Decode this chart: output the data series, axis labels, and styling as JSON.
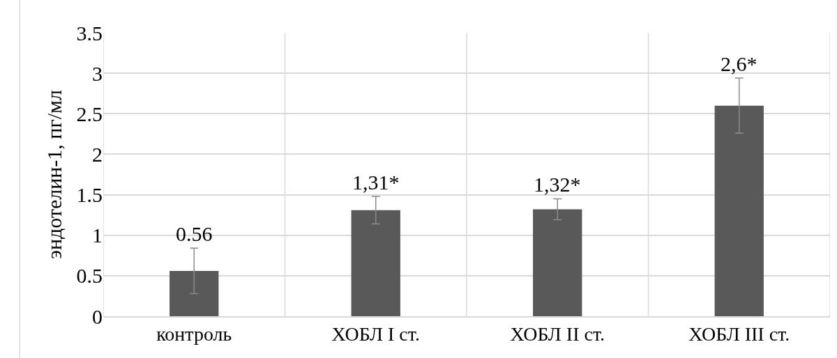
{
  "chart_data": {
    "type": "bar",
    "ylabel": "эндотелин-1, пг/мл",
    "categories": [
      "контроль",
      "ХОБЛ I ст.",
      "ХОБЛ II ст.",
      "ХОБЛ III ст."
    ],
    "values": [
      0.56,
      1.31,
      1.32,
      2.6
    ],
    "errors": [
      0.28,
      0.17,
      0.13,
      0.34
    ],
    "value_labels": [
      "0.56",
      "1,31*",
      "1,32*",
      "2,6*"
    ],
    "color": "#595959",
    "ylim": [
      0,
      3.5
    ],
    "yticks": [
      0,
      0.5,
      1,
      1.5,
      2,
      2.5,
      3,
      3.5
    ],
    "grid": true,
    "legend": false
  }
}
